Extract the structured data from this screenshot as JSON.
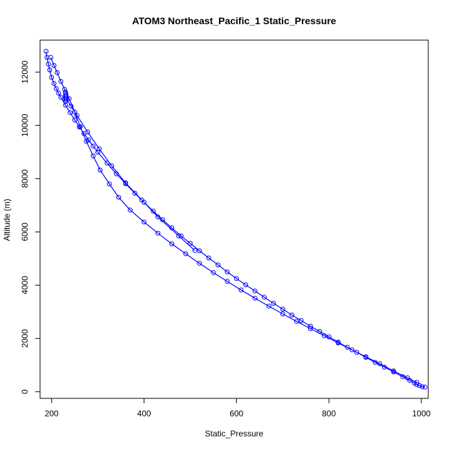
{
  "chart_data": {
    "type": "scatter",
    "title": "ATOM3 Northeast_Pacific_1 Static_Pressure",
    "xlabel": "Static_Pressure",
    "ylabel": "Altitude (m)",
    "xlim": [
      175,
      1015
    ],
    "ylim": [
      -250,
      13200
    ],
    "x_ticks": [
      200,
      400,
      600,
      800,
      1000
    ],
    "y_ticks": [
      0,
      2000,
      4000,
      6000,
      8000,
      10000,
      12000
    ],
    "series_color": "#0000ff",
    "series": [
      {
        "style": "points+lines",
        "points": [
          [
            1008,
            170
          ],
          [
            1002,
            190
          ],
          [
            996,
            230
          ],
          [
            990,
            270
          ],
          [
            985,
            320
          ],
          [
            975,
            420
          ],
          [
            960,
            560
          ],
          [
            940,
            740
          ],
          [
            920,
            920
          ],
          [
            900,
            1100
          ],
          [
            880,
            1290
          ],
          [
            860,
            1480
          ],
          [
            840,
            1670
          ],
          [
            820,
            1860
          ],
          [
            800,
            2060
          ],
          [
            780,
            2260
          ],
          [
            760,
            2460
          ],
          [
            740,
            2670
          ],
          [
            720,
            2880
          ],
          [
            700,
            3100
          ],
          [
            680,
            3320
          ],
          [
            660,
            3550
          ],
          [
            640,
            3780
          ],
          [
            620,
            4010
          ],
          [
            600,
            4250
          ],
          [
            580,
            4500
          ],
          [
            560,
            4760
          ],
          [
            540,
            5020
          ],
          [
            520,
            5290
          ],
          [
            500,
            5570
          ],
          [
            480,
            5850
          ],
          [
            460,
            6150
          ],
          [
            440,
            6460
          ],
          [
            420,
            6780
          ],
          [
            400,
            7110
          ],
          [
            380,
            7450
          ],
          [
            360,
            7810
          ],
          [
            340,
            8180
          ],
          [
            320,
            8580
          ],
          [
            300,
            8990
          ],
          [
            290,
            9220
          ],
          [
            280,
            9450
          ],
          [
            270,
            9690
          ],
          [
            260,
            9940
          ],
          [
            250,
            10200
          ],
          [
            240,
            10480
          ],
          [
            230,
            10760
          ],
          [
            220,
            11050
          ],
          [
            215,
            11210
          ],
          [
            210,
            11380
          ],
          [
            205,
            11570
          ],
          [
            200,
            11800
          ],
          [
            196,
            12080
          ],
          [
            193,
            12300
          ],
          [
            190,
            12550
          ],
          [
            188,
            12780
          ]
        ]
      },
      {
        "style": "points+lines",
        "points": [
          [
            990,
            350
          ],
          [
            970,
            520
          ],
          [
            940,
            780
          ],
          [
            910,
            1050
          ],
          [
            880,
            1310
          ],
          [
            850,
            1570
          ],
          [
            820,
            1830
          ],
          [
            790,
            2100
          ],
          [
            760,
            2370
          ],
          [
            730,
            2640
          ],
          [
            700,
            2920
          ],
          [
            670,
            3210
          ],
          [
            640,
            3510
          ],
          [
            610,
            3820
          ],
          [
            580,
            4140
          ],
          [
            550,
            4470
          ],
          [
            520,
            4820
          ],
          [
            490,
            5180
          ],
          [
            460,
            5550
          ],
          [
            430,
            5950
          ],
          [
            400,
            6370
          ],
          [
            370,
            6820
          ],
          [
            345,
            7300
          ],
          [
            325,
            7800
          ],
          [
            305,
            8320
          ],
          [
            290,
            8850
          ],
          [
            275,
            9400
          ],
          [
            262,
            9950
          ],
          [
            250,
            10500
          ],
          [
            238,
            11000
          ],
          [
            228,
            11350
          ],
          [
            220,
            11650
          ],
          [
            212,
            11980
          ],
          [
            205,
            12250
          ],
          [
            198,
            12550
          ]
        ]
      },
      {
        "style": "points+lines",
        "points": [
          [
            510,
            5300
          ],
          [
            475,
            5850
          ],
          [
            430,
            6560
          ],
          [
            395,
            7200
          ],
          [
            360,
            7840
          ],
          [
            330,
            8480
          ],
          [
            303,
            9120
          ],
          [
            278,
            9750
          ],
          [
            255,
            10370
          ],
          [
            242,
            10720
          ],
          [
            232,
            11000
          ]
        ]
      },
      {
        "style": "points",
        "points": [
          [
            230,
            10900
          ],
          [
            230,
            11000
          ],
          [
            230,
            11100
          ],
          [
            230,
            11200
          ],
          [
            230,
            11250
          ],
          [
            231,
            10950
          ],
          [
            231,
            11050
          ],
          [
            231,
            11150
          ]
        ]
      }
    ]
  }
}
